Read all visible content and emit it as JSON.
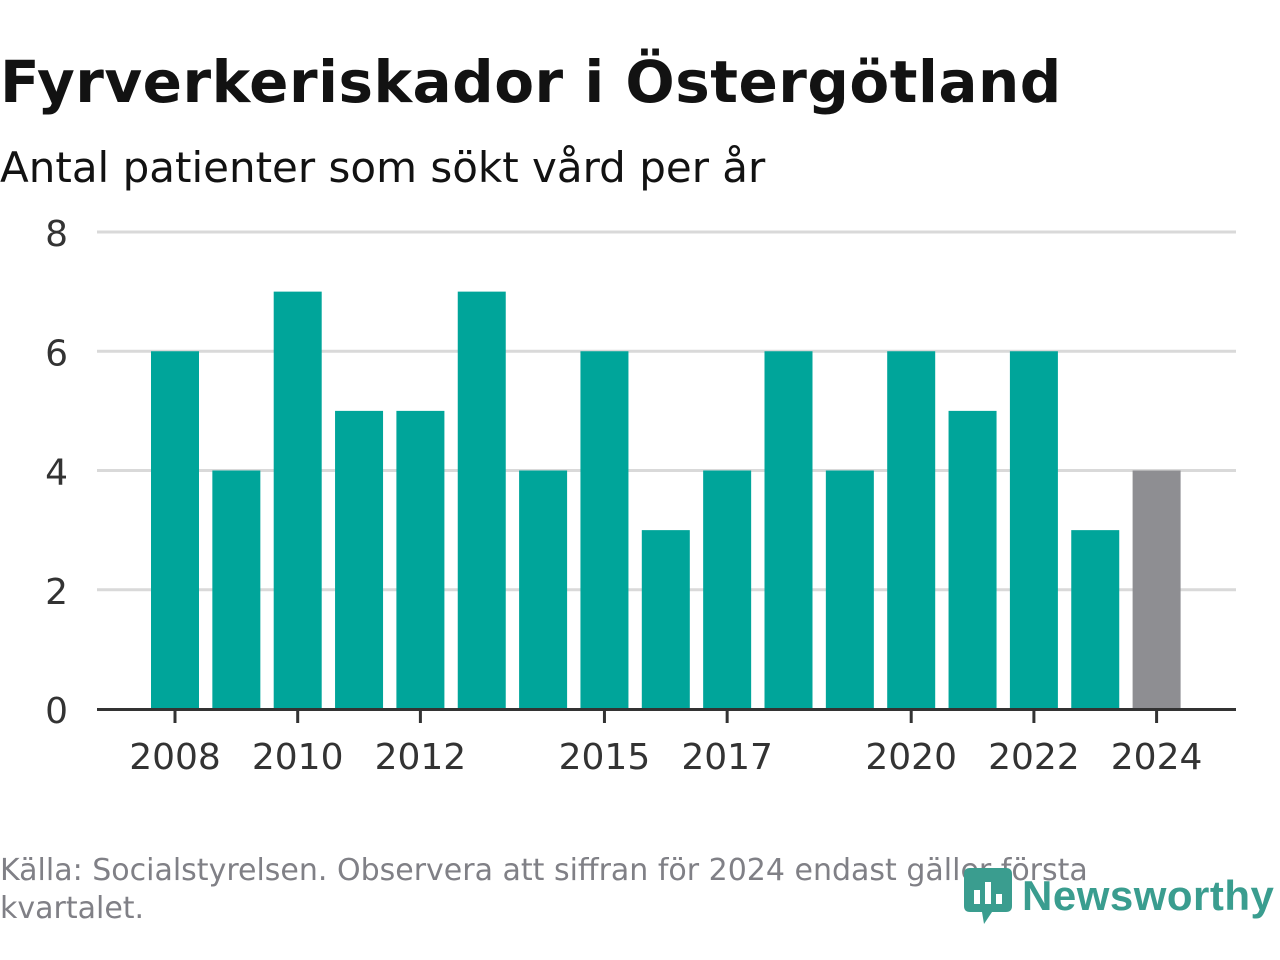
{
  "title": "Fyrverkeriskador i Östergötland",
  "subtitle": "Antal patienter som sökt vård per år",
  "source": "Källa: Socialstyrelsen. Observera att siffran för 2024 endast gäller första kvartalet.",
  "logo": {
    "text": "Newsworthy",
    "icon": "newsworthy-logo-icon"
  },
  "colors": {
    "bar": "#00a59a",
    "highlight": "#8e8e92",
    "grid": "#d9d9d9",
    "axis": "#333333"
  },
  "chart_data": {
    "type": "bar",
    "categories": [
      2008,
      2009,
      2010,
      2011,
      2012,
      2013,
      2014,
      2015,
      2016,
      2017,
      2018,
      2019,
      2020,
      2021,
      2022,
      2023,
      2024
    ],
    "values": [
      6,
      4,
      7,
      5,
      5,
      7,
      4,
      6,
      3,
      4,
      6,
      4,
      6,
      5,
      6,
      3,
      4
    ],
    "highlight_category": 2024,
    "x_tick_labels": [
      "2008",
      "2010",
      "2012",
      "2015",
      "2017",
      "2020",
      "2022",
      "2024"
    ],
    "y_ticks": [
      0,
      2,
      4,
      6,
      8
    ],
    "ylim": [
      0,
      8
    ],
    "xlabel": "",
    "ylabel": "",
    "grid": true,
    "legend": false
  }
}
